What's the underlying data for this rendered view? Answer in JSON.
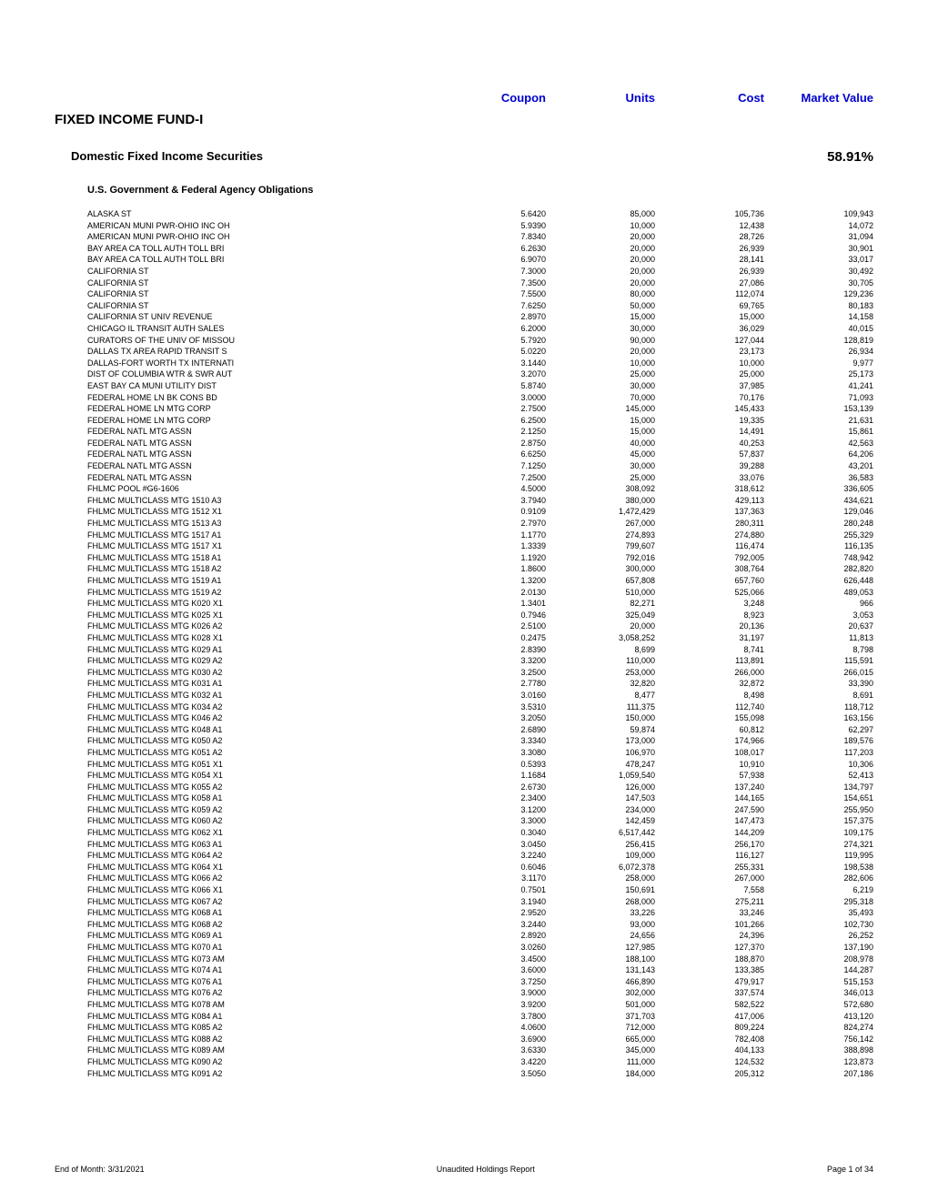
{
  "headers": {
    "coupon": "Coupon",
    "units": "Units",
    "cost": "Cost",
    "market_value": "Market Value"
  },
  "fund_title": "FIXED INCOME FUND-I",
  "section": {
    "title": "Domestic Fixed Income Securities",
    "percent": "58.91%"
  },
  "subsection": "U.S. Government & Federal Agency Obligations",
  "styling": {
    "header_color": "#0000d0",
    "text_color": "#000000",
    "background_color": "#ffffff",
    "header_fontsize": 13,
    "title_fontsize": 15,
    "section_fontsize": 13,
    "subsection_fontsize": 11,
    "row_fontsize": 9,
    "row_lineheight": 12.6,
    "column_widths": {
      "name": 404,
      "coupon": 100,
      "units": 120,
      "cost": 120,
      "mv": 120
    }
  },
  "rows": [
    {
      "name": "ALASKA ST",
      "coupon": "5.6420",
      "units": "85,000",
      "cost": "105,736",
      "mv": "109,943"
    },
    {
      "name": "AMERICAN MUNI PWR-OHIO INC OH",
      "coupon": "5.9390",
      "units": "10,000",
      "cost": "12,438",
      "mv": "14,072"
    },
    {
      "name": "AMERICAN MUNI PWR-OHIO INC OH",
      "coupon": "7.8340",
      "units": "20,000",
      "cost": "28,726",
      "mv": "31,094"
    },
    {
      "name": "BAY AREA CA TOLL AUTH TOLL BRI",
      "coupon": "6.2630",
      "units": "20,000",
      "cost": "26,939",
      "mv": "30,901"
    },
    {
      "name": "BAY AREA CA TOLL AUTH TOLL BRI",
      "coupon": "6.9070",
      "units": "20,000",
      "cost": "28,141",
      "mv": "33,017"
    },
    {
      "name": "CALIFORNIA ST",
      "coupon": "7.3000",
      "units": "20,000",
      "cost": "26,939",
      "mv": "30,492"
    },
    {
      "name": "CALIFORNIA ST",
      "coupon": "7.3500",
      "units": "20,000",
      "cost": "27,086",
      "mv": "30,705"
    },
    {
      "name": "CALIFORNIA ST",
      "coupon": "7.5500",
      "units": "80,000",
      "cost": "112,074",
      "mv": "129,236"
    },
    {
      "name": "CALIFORNIA ST",
      "coupon": "7.6250",
      "units": "50,000",
      "cost": "69,765",
      "mv": "80,183"
    },
    {
      "name": "CALIFORNIA ST UNIV REVENUE",
      "coupon": "2.8970",
      "units": "15,000",
      "cost": "15,000",
      "mv": "14,158"
    },
    {
      "name": "CHICAGO IL TRANSIT AUTH SALES",
      "coupon": "6.2000",
      "units": "30,000",
      "cost": "36,029",
      "mv": "40,015"
    },
    {
      "name": "CURATORS OF THE UNIV OF MISSOU",
      "coupon": "5.7920",
      "units": "90,000",
      "cost": "127,044",
      "mv": "128,819"
    },
    {
      "name": "DALLAS TX AREA RAPID TRANSIT S",
      "coupon": "5.0220",
      "units": "20,000",
      "cost": "23,173",
      "mv": "26,934"
    },
    {
      "name": "DALLAS-FORT WORTH TX INTERNATI",
      "coupon": "3.1440",
      "units": "10,000",
      "cost": "10,000",
      "mv": "9,977"
    },
    {
      "name": "DIST OF COLUMBIA WTR & SWR AUT",
      "coupon": "3.2070",
      "units": "25,000",
      "cost": "25,000",
      "mv": "25,173"
    },
    {
      "name": "EAST BAY CA MUNI UTILITY DIST",
      "coupon": "5.8740",
      "units": "30,000",
      "cost": "37,985",
      "mv": "41,241"
    },
    {
      "name": "FEDERAL HOME LN BK CONS BD",
      "coupon": "3.0000",
      "units": "70,000",
      "cost": "70,176",
      "mv": "71,093"
    },
    {
      "name": "FEDERAL HOME LN MTG CORP",
      "coupon": "2.7500",
      "units": "145,000",
      "cost": "145,433",
      "mv": "153,139"
    },
    {
      "name": "FEDERAL HOME LN MTG CORP",
      "coupon": "6.2500",
      "units": "15,000",
      "cost": "19,335",
      "mv": "21,631"
    },
    {
      "name": "FEDERAL NATL MTG ASSN",
      "coupon": "2.1250",
      "units": "15,000",
      "cost": "14,491",
      "mv": "15,861"
    },
    {
      "name": "FEDERAL NATL MTG ASSN",
      "coupon": "2.8750",
      "units": "40,000",
      "cost": "40,253",
      "mv": "42,563"
    },
    {
      "name": "FEDERAL NATL MTG ASSN",
      "coupon": "6.6250",
      "units": "45,000",
      "cost": "57,837",
      "mv": "64,206"
    },
    {
      "name": "FEDERAL NATL MTG ASSN",
      "coupon": "7.1250",
      "units": "30,000",
      "cost": "39,288",
      "mv": "43,201"
    },
    {
      "name": "FEDERAL NATL MTG ASSN",
      "coupon": "7.2500",
      "units": "25,000",
      "cost": "33,076",
      "mv": "36,583"
    },
    {
      "name": "FHLMC   POOL #G6-1606",
      "coupon": "4.5000",
      "units": "308,092",
      "cost": "318,612",
      "mv": "336,605"
    },
    {
      "name": "FHLMC MULTICLASS MTG 1510 A3",
      "coupon": "3.7940",
      "units": "380,000",
      "cost": "429,113",
      "mv": "434,621"
    },
    {
      "name": "FHLMC MULTICLASS MTG 1512 X1",
      "coupon": "0.9109",
      "units": "1,472,429",
      "cost": "137,363",
      "mv": "129,046"
    },
    {
      "name": "FHLMC MULTICLASS MTG 1513 A3",
      "coupon": "2.7970",
      "units": "267,000",
      "cost": "280,311",
      "mv": "280,248"
    },
    {
      "name": "FHLMC MULTICLASS MTG 1517 A1",
      "coupon": "1.1770",
      "units": "274,893",
      "cost": "274,880",
      "mv": "255,329"
    },
    {
      "name": "FHLMC MULTICLASS MTG 1517 X1",
      "coupon": "1.3339",
      "units": "799,607",
      "cost": "116,474",
      "mv": "116,135"
    },
    {
      "name": "FHLMC MULTICLASS MTG 1518 A1",
      "coupon": "1.1920",
      "units": "792,016",
      "cost": "792,005",
      "mv": "748,942"
    },
    {
      "name": "FHLMC MULTICLASS MTG 1518 A2",
      "coupon": "1.8600",
      "units": "300,000",
      "cost": "308,764",
      "mv": "282,820"
    },
    {
      "name": "FHLMC MULTICLASS MTG 1519 A1",
      "coupon": "1.3200",
      "units": "657,808",
      "cost": "657,760",
      "mv": "626,448"
    },
    {
      "name": "FHLMC MULTICLASS MTG 1519 A2",
      "coupon": "2.0130",
      "units": "510,000",
      "cost": "525,066",
      "mv": "489,053"
    },
    {
      "name": "FHLMC MULTICLASS MTG K020 X1",
      "coupon": "1.3401",
      "units": "82,271",
      "cost": "3,248",
      "mv": "966"
    },
    {
      "name": "FHLMC MULTICLASS MTG K025 X1",
      "coupon": "0.7946",
      "units": "325,049",
      "cost": "8,923",
      "mv": "3,053"
    },
    {
      "name": "FHLMC MULTICLASS MTG K026 A2",
      "coupon": "2.5100",
      "units": "20,000",
      "cost": "20,136",
      "mv": "20,637"
    },
    {
      "name": "FHLMC MULTICLASS MTG K028 X1",
      "coupon": "0.2475",
      "units": "3,058,252",
      "cost": "31,197",
      "mv": "11,813"
    },
    {
      "name": "FHLMC MULTICLASS MTG K029 A1",
      "coupon": "2.8390",
      "units": "8,699",
      "cost": "8,741",
      "mv": "8,798"
    },
    {
      "name": "FHLMC MULTICLASS MTG K029 A2",
      "coupon": "3.3200",
      "units": "110,000",
      "cost": "113,891",
      "mv": "115,591"
    },
    {
      "name": "FHLMC MULTICLASS MTG K030 A2",
      "coupon": "3.2500",
      "units": "253,000",
      "cost": "266,000",
      "mv": "266,015"
    },
    {
      "name": "FHLMC MULTICLASS MTG K031 A1",
      "coupon": "2.7780",
      "units": "32,820",
      "cost": "32,872",
      "mv": "33,390"
    },
    {
      "name": "FHLMC MULTICLASS MTG K032 A1",
      "coupon": "3.0160",
      "units": "8,477",
      "cost": "8,498",
      "mv": "8,691"
    },
    {
      "name": "FHLMC MULTICLASS MTG K034 A2",
      "coupon": "3.5310",
      "units": "111,375",
      "cost": "112,740",
      "mv": "118,712"
    },
    {
      "name": "FHLMC MULTICLASS MTG K046 A2",
      "coupon": "3.2050",
      "units": "150,000",
      "cost": "155,098",
      "mv": "163,156"
    },
    {
      "name": "FHLMC MULTICLASS MTG K048 A1",
      "coupon": "2.6890",
      "units": "59,874",
      "cost": "60,812",
      "mv": "62,297"
    },
    {
      "name": "FHLMC MULTICLASS MTG K050 A2",
      "coupon": "3.3340",
      "units": "173,000",
      "cost": "174,966",
      "mv": "189,576"
    },
    {
      "name": "FHLMC MULTICLASS MTG K051 A2",
      "coupon": "3.3080",
      "units": "106,970",
      "cost": "108,017",
      "mv": "117,203"
    },
    {
      "name": "FHLMC MULTICLASS MTG K051 X1",
      "coupon": "0.5393",
      "units": "478,247",
      "cost": "10,910",
      "mv": "10,306"
    },
    {
      "name": "FHLMC MULTICLASS MTG K054 X1",
      "coupon": "1.1684",
      "units": "1,059,540",
      "cost": "57,938",
      "mv": "52,413"
    },
    {
      "name": "FHLMC MULTICLASS MTG K055 A2",
      "coupon": "2.6730",
      "units": "126,000",
      "cost": "137,240",
      "mv": "134,797"
    },
    {
      "name": "FHLMC MULTICLASS MTG K058 A1",
      "coupon": "2.3400",
      "units": "147,503",
      "cost": "144,165",
      "mv": "154,651"
    },
    {
      "name": "FHLMC MULTICLASS MTG K059 A2",
      "coupon": "3.1200",
      "units": "234,000",
      "cost": "247,590",
      "mv": "255,950"
    },
    {
      "name": "FHLMC MULTICLASS MTG K060 A2",
      "coupon": "3.3000",
      "units": "142,459",
      "cost": "147,473",
      "mv": "157,375"
    },
    {
      "name": "FHLMC MULTICLASS MTG K062 X1",
      "coupon": "0.3040",
      "units": "6,517,442",
      "cost": "144,209",
      "mv": "109,175"
    },
    {
      "name": "FHLMC MULTICLASS MTG K063 A1",
      "coupon": "3.0450",
      "units": "256,415",
      "cost": "256,170",
      "mv": "274,321"
    },
    {
      "name": "FHLMC MULTICLASS MTG K064 A2",
      "coupon": "3.2240",
      "units": "109,000",
      "cost": "116,127",
      "mv": "119,995"
    },
    {
      "name": "FHLMC MULTICLASS MTG K064 X1",
      "coupon": "0.6046",
      "units": "6,072,378",
      "cost": "255,331",
      "mv": "198,538"
    },
    {
      "name": "FHLMC MULTICLASS MTG K066 A2",
      "coupon": "3.1170",
      "units": "258,000",
      "cost": "267,000",
      "mv": "282,606"
    },
    {
      "name": "FHLMC MULTICLASS MTG K066 X1",
      "coupon": "0.7501",
      "units": "150,691",
      "cost": "7,558",
      "mv": "6,219"
    },
    {
      "name": "FHLMC MULTICLASS MTG K067 A2",
      "coupon": "3.1940",
      "units": "268,000",
      "cost": "275,211",
      "mv": "295,318"
    },
    {
      "name": "FHLMC MULTICLASS MTG K068 A1",
      "coupon": "2.9520",
      "units": "33,226",
      "cost": "33,246",
      "mv": "35,493"
    },
    {
      "name": "FHLMC MULTICLASS MTG K068 A2",
      "coupon": "3.2440",
      "units": "93,000",
      "cost": "101,266",
      "mv": "102,730"
    },
    {
      "name": "FHLMC MULTICLASS MTG K069 A1",
      "coupon": "2.8920",
      "units": "24,656",
      "cost": "24,396",
      "mv": "26,252"
    },
    {
      "name": "FHLMC MULTICLASS MTG K070 A1",
      "coupon": "3.0260",
      "units": "127,985",
      "cost": "127,370",
      "mv": "137,190"
    },
    {
      "name": "FHLMC MULTICLASS MTG K073 AM",
      "coupon": "3.4500",
      "units": "188,100",
      "cost": "188,870",
      "mv": "208,978"
    },
    {
      "name": "FHLMC MULTICLASS MTG K074 A1",
      "coupon": "3.6000",
      "units": "131,143",
      "cost": "133,385",
      "mv": "144,287"
    },
    {
      "name": "FHLMC MULTICLASS MTG K076 A1",
      "coupon": "3.7250",
      "units": "466,890",
      "cost": "479,917",
      "mv": "515,153"
    },
    {
      "name": "FHLMC MULTICLASS MTG K076 A2",
      "coupon": "3.9000",
      "units": "302,000",
      "cost": "337,574",
      "mv": "346,013"
    },
    {
      "name": "FHLMC MULTICLASS MTG K078 AM",
      "coupon": "3.9200",
      "units": "501,000",
      "cost": "582,522",
      "mv": "572,680"
    },
    {
      "name": "FHLMC MULTICLASS MTG K084 A1",
      "coupon": "3.7800",
      "units": "371,703",
      "cost": "417,006",
      "mv": "413,120"
    },
    {
      "name": "FHLMC MULTICLASS MTG K085 A2",
      "coupon": "4.0600",
      "units": "712,000",
      "cost": "809,224",
      "mv": "824,274"
    },
    {
      "name": "FHLMC MULTICLASS MTG K088 A2",
      "coupon": "3.6900",
      "units": "665,000",
      "cost": "782,408",
      "mv": "756,142"
    },
    {
      "name": "FHLMC MULTICLASS MTG K089 AM",
      "coupon": "3.6330",
      "units": "345,000",
      "cost": "404,133",
      "mv": "388,898"
    },
    {
      "name": "FHLMC MULTICLASS MTG K090 A2",
      "coupon": "3.4220",
      "units": "111,000",
      "cost": "124,532",
      "mv": "123,873"
    },
    {
      "name": "FHLMC MULTICLASS MTG K091 A2",
      "coupon": "3.5050",
      "units": "184,000",
      "cost": "205,312",
      "mv": "207,186"
    }
  ],
  "footer": {
    "left": "End of Month: 3/31/2021",
    "center": "Unaudited Holdings Report",
    "right": "Page 1 of 34"
  }
}
